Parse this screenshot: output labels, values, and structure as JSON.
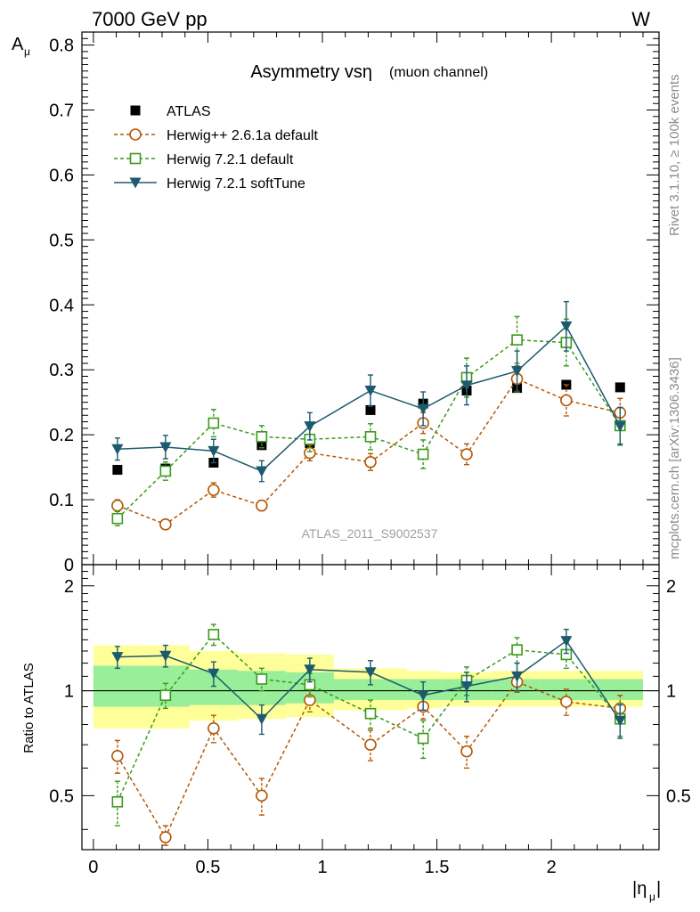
{
  "header": {
    "left": "7000 GeV pp",
    "right": "W"
  },
  "side_labels": {
    "rivet": "Rivet 3.1.10, ≥ 100k events",
    "mcplots": "mcplots.cern.ch [arXiv:1306.3436]"
  },
  "chart_data": {
    "type": "line",
    "title_main": "Asymmetry vsη",
    "title_sub": "(muon channel)",
    "analysis_tag": "ATLAS_2011_S9002537",
    "ylabel": "A",
    "ylabel_sub": "μ",
    "xlabel": "|η",
    "xlabel_sub": "μ",
    "xlabel_end": "|",
    "xlim": [
      -0.05,
      2.47
    ],
    "ylim": [
      0,
      0.82
    ],
    "x_ticks": [
      "0",
      "0.5",
      "1",
      "1.5",
      "2"
    ],
    "y_ticks": [
      "0.1",
      "0.2",
      "0.3",
      "0.4",
      "0.5",
      "0.6",
      "0.7",
      "0.8"
    ],
    "y_zero_label": "0",
    "x": [
      0.105,
      0.315,
      0.525,
      0.735,
      0.945,
      1.21,
      1.44,
      1.63,
      1.85,
      2.065,
      2.3
    ],
    "x_edges": [
      0.0,
      0.21,
      0.42,
      0.63,
      0.84,
      1.05,
      1.37,
      1.52,
      1.74,
      1.95,
      2.18,
      2.4
    ],
    "series": [
      {
        "name": "ATLAS",
        "color": "#000000",
        "marker": "square-filled",
        "values": [
          0.146,
          0.148,
          0.157,
          0.184,
          0.187,
          0.238,
          0.248,
          0.268,
          0.272,
          0.277,
          0.273
        ]
      },
      {
        "name": "Herwig++ 2.6.1a default",
        "color": "#b35806",
        "marker": "circle-open",
        "values": [
          0.091,
          0.062,
          0.115,
          0.091,
          0.172,
          0.158,
          0.218,
          0.17,
          0.286,
          0.253,
          0.234
        ],
        "errors": [
          0.009,
          0.004,
          0.011,
          0.008,
          0.012,
          0.013,
          0.016,
          0.016,
          0.02,
          0.024,
          0.022
        ]
      },
      {
        "name": "Herwig 7.2.1 default",
        "color": "#3a9a1a",
        "marker": "square-open",
        "values": [
          0.071,
          0.144,
          0.218,
          0.197,
          0.193,
          0.197,
          0.17,
          0.288,
          0.346,
          0.342,
          0.214
        ],
        "errors": [
          0.011,
          0.014,
          0.021,
          0.017,
          0.019,
          0.02,
          0.022,
          0.03,
          0.036,
          0.036,
          0.028
        ]
      },
      {
        "name": "Herwig 7.2.1 softTune",
        "color": "#1d5a6e",
        "marker": "triangle-down-filled",
        "values": [
          0.178,
          0.181,
          0.175,
          0.144,
          0.213,
          0.268,
          0.24,
          0.276,
          0.298,
          0.367,
          0.213
        ],
        "errors": [
          0.017,
          0.018,
          0.018,
          0.016,
          0.021,
          0.024,
          0.026,
          0.03,
          0.031,
          0.038,
          0.029
        ]
      }
    ],
    "ratio": {
      "ylabel": "Ratio to ATLAS",
      "ylim": [
        0.35,
        2.3
      ],
      "y_ticks_left": [
        "0.5",
        "1",
        "2"
      ],
      "y_ticks_right": [
        "0.5",
        "1",
        "2"
      ],
      "band_yellow": [
        [
          0.78,
          1.35
        ],
        [
          0.78,
          1.35
        ],
        [
          0.82,
          1.3
        ],
        [
          0.83,
          1.28
        ],
        [
          0.84,
          1.27
        ],
        [
          0.88,
          1.16
        ],
        [
          0.89,
          1.14
        ],
        [
          0.9,
          1.13
        ],
        [
          0.9,
          1.14
        ],
        [
          0.9,
          1.14
        ],
        [
          0.9,
          1.14
        ]
      ],
      "band_green": [
        [
          0.9,
          1.18
        ],
        [
          0.9,
          1.18
        ],
        [
          0.91,
          1.15
        ],
        [
          0.91,
          1.14
        ],
        [
          0.92,
          1.13
        ],
        [
          0.94,
          1.08
        ],
        [
          0.94,
          1.08
        ],
        [
          0.94,
          1.08
        ],
        [
          0.94,
          1.08
        ],
        [
          0.94,
          1.08
        ],
        [
          0.94,
          1.08
        ]
      ],
      "series": [
        {
          "name": "Herwig++ 2.6.1a default",
          "values": [
            0.65,
            0.38,
            0.78,
            0.5,
            0.94,
            0.7,
            0.9,
            0.67,
            1.06,
            0.93,
            0.89
          ],
          "errors": [
            0.07,
            0.03,
            0.07,
            0.06,
            0.07,
            0.07,
            0.07,
            0.07,
            0.07,
            0.08,
            0.08
          ]
        },
        {
          "name": "Herwig 7.2.1 default",
          "values": [
            0.48,
            0.97,
            1.45,
            1.08,
            1.04,
            0.86,
            0.73,
            1.07,
            1.31,
            1.27,
            0.83
          ],
          "errors": [
            0.07,
            0.08,
            0.1,
            0.08,
            0.08,
            0.08,
            0.09,
            0.1,
            0.11,
            0.11,
            0.09
          ]
        },
        {
          "name": "Herwig 7.2.1 softTune",
          "values": [
            1.25,
            1.26,
            1.12,
            0.83,
            1.15,
            1.13,
            0.97,
            1.03,
            1.1,
            1.39,
            0.82
          ],
          "errors": [
            0.09,
            0.09,
            0.09,
            0.08,
            0.09,
            0.09,
            0.09,
            0.1,
            0.1,
            0.11,
            0.09
          ]
        }
      ]
    }
  }
}
